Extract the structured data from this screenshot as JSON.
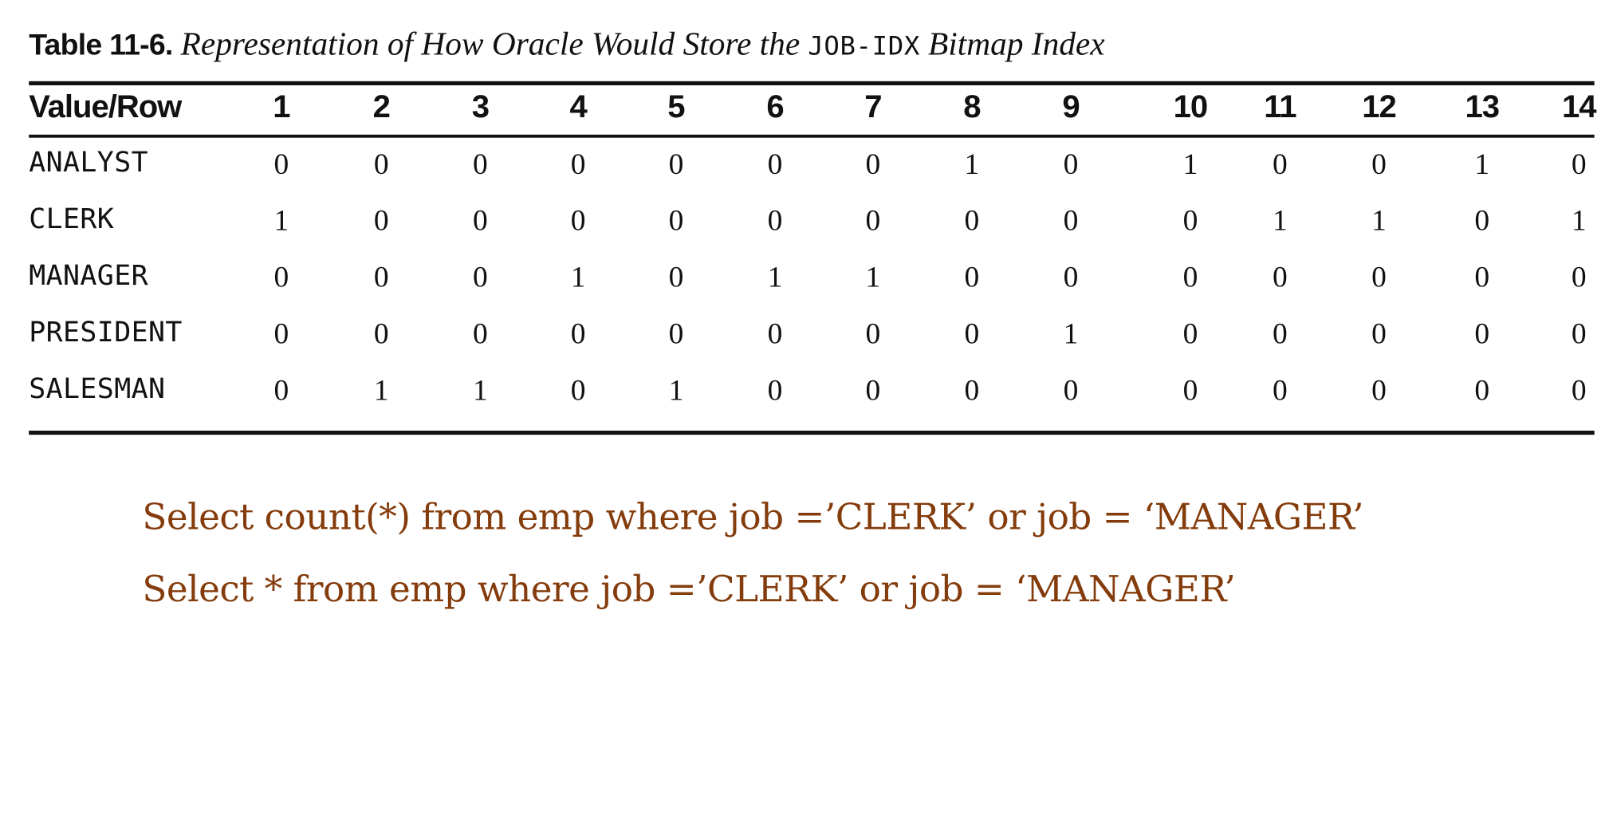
{
  "caption": {
    "label": "Table 11-6.",
    "text_before": "Representation of How Oracle Would Store the",
    "code": "JOB-IDX",
    "text_after": "Bitmap Index"
  },
  "table": {
    "corner_header": "Value/Row",
    "columns": [
      "1",
      "2",
      "3",
      "4",
      "5",
      "6",
      "7",
      "8",
      "9",
      "10",
      "11",
      "12",
      "13",
      "14"
    ],
    "rows": [
      {
        "label": "ANALYST",
        "values": [
          "0",
          "0",
          "0",
          "0",
          "0",
          "0",
          "0",
          "1",
          "0",
          "1",
          "0",
          "0",
          "1",
          "0"
        ]
      },
      {
        "label": "CLERK",
        "values": [
          "1",
          "0",
          "0",
          "0",
          "0",
          "0",
          "0",
          "0",
          "0",
          "0",
          "1",
          "1",
          "0",
          "1"
        ]
      },
      {
        "label": "MANAGER",
        "values": [
          "0",
          "0",
          "0",
          "1",
          "0",
          "1",
          "1",
          "0",
          "0",
          "0",
          "0",
          "0",
          "0",
          "0"
        ]
      },
      {
        "label": "PRESIDENT",
        "values": [
          "0",
          "0",
          "0",
          "0",
          "0",
          "0",
          "0",
          "0",
          "1",
          "0",
          "0",
          "0",
          "0",
          "0"
        ]
      },
      {
        "label": "SALESMAN",
        "values": [
          "0",
          "1",
          "1",
          "0",
          "1",
          "0",
          "0",
          "0",
          "0",
          "0",
          "0",
          "0",
          "0",
          "0"
        ]
      }
    ]
  },
  "queries": [
    "Select count(*) from emp where job =’CLERK’ or job = ‘MANAGER’",
    "Select * from emp where job =’CLERK’ or job = ‘MANAGER’"
  ],
  "colors": {
    "text": "#111111",
    "query_text": "#843c0c",
    "rules": "#111111"
  }
}
